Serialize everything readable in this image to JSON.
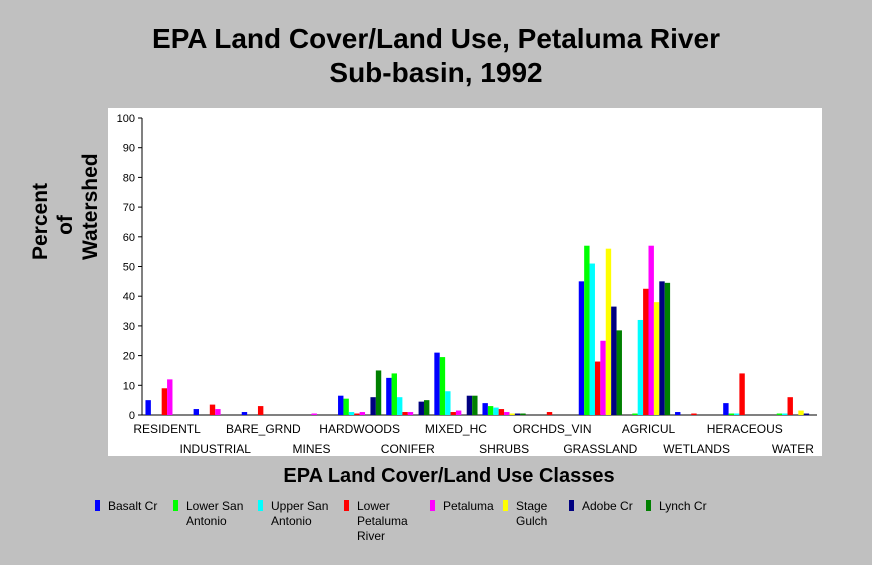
{
  "chart_data": {
    "type": "bar",
    "title_lines": [
      "EPA Land Cover/Land Use, Petaluma River",
      "Sub-basin, 1992"
    ],
    "ylabel_lines": [
      "Percent of",
      "Watershed"
    ],
    "xlabel": "EPA Land Cover/Land Use Classes",
    "ylim": [
      0,
      100
    ],
    "yticks": [
      0,
      10,
      20,
      30,
      40,
      50,
      60,
      70,
      80,
      90,
      100
    ],
    "grid": false,
    "legend_position": "bottom",
    "categories": [
      "RESIDENTL",
      "INDUSTRIAL",
      "BARE_GRND",
      "MINES",
      "HARDWOODS",
      "CONIFER",
      "MIXED_HC",
      "SHRUBS",
      "ORCHDS_VIN",
      "GRASSLAND",
      "AGRICUL",
      "WETLANDS",
      "HERACEOUS",
      "WATER"
    ],
    "series": [
      {
        "name": "Basalt Cr",
        "color": "#0000ff",
        "values": [
          5.0,
          2.0,
          1.0,
          0.0,
          6.5,
          12.5,
          21.0,
          4.0,
          0.0,
          45.0,
          0.0,
          1.0,
          4.0,
          0.0
        ]
      },
      {
        "name": "Lower San Antonio",
        "color": "#00ff00",
        "values": [
          0.0,
          0.0,
          0.0,
          0.0,
          5.5,
          14.0,
          19.5,
          3.0,
          0.0,
          57.0,
          0.5,
          0.0,
          0.5,
          0.5
        ]
      },
      {
        "name": "Upper San Antonio",
        "color": "#00ffff",
        "values": [
          0.0,
          0.0,
          0.0,
          0.0,
          1.0,
          6.0,
          8.0,
          2.5,
          0.0,
          51.0,
          32.0,
          0.0,
          0.5,
          0.5
        ]
      },
      {
        "name": "Lower Petaluma River",
        "color": "#ff0000",
        "values": [
          9.0,
          3.5,
          3.0,
          0.0,
          0.5,
          1.0,
          1.0,
          2.0,
          1.0,
          18.0,
          42.5,
          0.5,
          14.0,
          6.0
        ]
      },
      {
        "name": "Petaluma",
        "color": "#ff00ff",
        "values": [
          12.0,
          2.0,
          0.0,
          0.5,
          1.0,
          1.0,
          1.5,
          1.0,
          0.0,
          25.0,
          57.0,
          0.0,
          0.0,
          0.0
        ]
      },
      {
        "name": "Stage Gulch",
        "color": "#ffff00",
        "values": [
          0.0,
          0.0,
          0.0,
          0.0,
          0.0,
          0.0,
          0.0,
          0.5,
          0.0,
          56.0,
          38.0,
          0.0,
          0.0,
          1.5
        ]
      },
      {
        "name": "Adobe Cr",
        "color": "#000080",
        "values": [
          0.0,
          0.0,
          0.0,
          0.0,
          6.0,
          4.5,
          6.5,
          0.5,
          0.0,
          36.5,
          45.0,
          0.0,
          0.0,
          0.5
        ]
      },
      {
        "name": "Lynch Cr",
        "color": "#008000",
        "values": [
          0.0,
          0.0,
          0.0,
          0.0,
          15.0,
          5.0,
          6.5,
          0.5,
          0.0,
          28.5,
          44.5,
          0.0,
          0.0,
          0.0
        ]
      }
    ],
    "legend_labels": [
      [
        "Basalt Cr"
      ],
      [
        "Lower San",
        "Antonio"
      ],
      [
        "Upper San",
        "Antonio"
      ],
      [
        "Lower",
        "Petaluma",
        "River"
      ],
      [
        "Petaluma"
      ],
      [
        "Stage",
        "Gulch"
      ],
      [
        "Adobe Cr"
      ],
      [
        "Lynch Cr"
      ]
    ]
  }
}
